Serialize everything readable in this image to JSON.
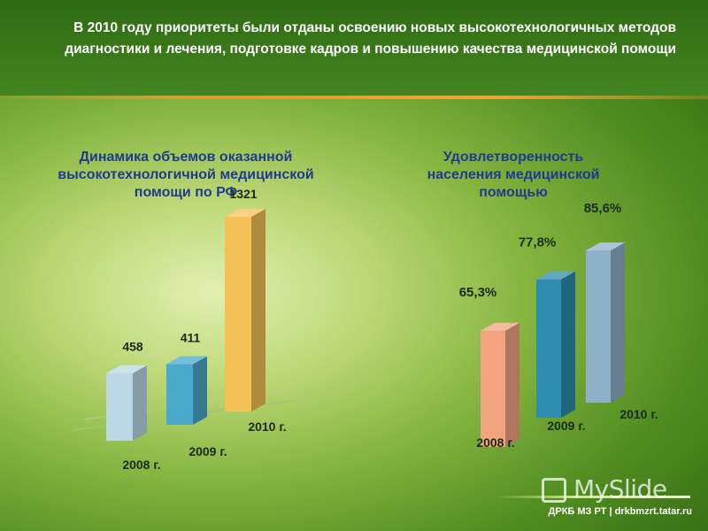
{
  "header": {
    "text": "В 2010 году приоритеты были отданы освоению новых высокотехнологичных методов диагностики и лечения, подготовке кадров и повышению качества медицинской помощи"
  },
  "watermark": {
    "text": "MySlide"
  },
  "footer": {
    "text": "ДРКБ МЗ РТ | drkbmzrt.tatar.ru"
  },
  "chart_data": [
    {
      "type": "bar",
      "title": "Динамика объемов оказанной высокотехнологичной медицинской помощи по РФ",
      "categories": [
        "2008 г.",
        "2009 г.",
        "2010 г."
      ],
      "values": [
        458,
        411,
        1321
      ],
      "data_labels": [
        "458",
        "411",
        "1321"
      ],
      "colors": [
        "#bcd8e6",
        "#4aaacb",
        "#f3c155"
      ],
      "legend": "none",
      "grid": false,
      "xlabel": "",
      "ylabel": ""
    },
    {
      "type": "bar",
      "title": "Удовлетворенность населения медицинской помощью",
      "categories": [
        "2008 г.",
        "2009 г.",
        "2010 г."
      ],
      "values": [
        65.3,
        77.8,
        85.6
      ],
      "data_labels": [
        "65,3%",
        "77,8%",
        "85,6%"
      ],
      "colors": [
        "#f4a381",
        "#2e8cae",
        "#8fb0c9"
      ],
      "legend": "none",
      "grid": false,
      "xlabel": "",
      "ylabel": ""
    }
  ]
}
